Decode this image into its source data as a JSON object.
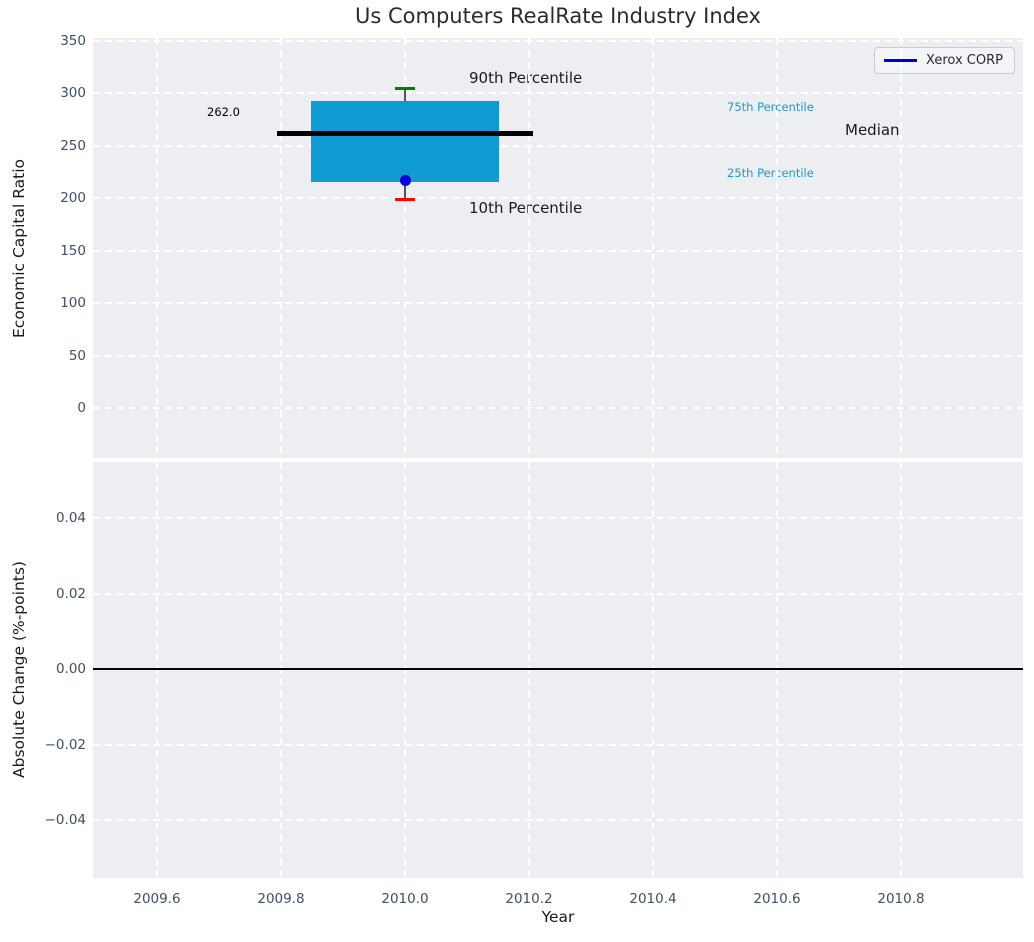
{
  "title": "Us Computers RealRate Industry Index",
  "legend": {
    "label": "Xerox CORP",
    "line_color": "#0000cd"
  },
  "colors": {
    "box_fill": "#0f9ad2",
    "median_line": "#000000",
    "whisker": "#555555",
    "p90_cap": "#008000",
    "p10_cap": "#ff0000",
    "company_point": "#0000ee",
    "percentile_label": "#1f99cc",
    "plot_background": "#eceef1",
    "gridline": "#ffffff",
    "tick_label": "#3e5063",
    "zero_line": "#000000"
  },
  "axes": {
    "top": {
      "ylabel": "Economic Capital Ratio",
      "yticks": [
        {
          "label": "350",
          "value": 350
        },
        {
          "label": "300",
          "value": 300
        },
        {
          "label": "250",
          "value": 250
        },
        {
          "label": "200",
          "value": 200
        },
        {
          "label": "150",
          "value": 150
        },
        {
          "label": "100",
          "value": 100
        },
        {
          "label": "50",
          "value": 50
        },
        {
          "label": "0",
          "value": 0
        }
      ]
    },
    "bottom": {
      "ylabel": "Absolute Change (%-points)",
      "yticks": [
        {
          "label": "0.04",
          "value": 0.04
        },
        {
          "label": "0.02",
          "value": 0.02
        },
        {
          "label": "0.00",
          "value": 0
        },
        {
          "label": "−0.02",
          "value": -0.02
        },
        {
          "label": "−0.04",
          "value": -0.04
        }
      ]
    },
    "x": {
      "label": "Year",
      "ticks": [
        {
          "label": "2009.6",
          "value": 2009.6
        },
        {
          "label": "2009.8",
          "value": 2009.8
        },
        {
          "label": "2010.0",
          "value": 2010.0
        },
        {
          "label": "2010.2",
          "value": 2010.2
        },
        {
          "label": "2010.4",
          "value": 2010.4
        },
        {
          "label": "2010.6",
          "value": 2010.6
        },
        {
          "label": "2010.8",
          "value": 2010.8
        }
      ]
    }
  },
  "annotations": {
    "p90": "90th Percentile",
    "p10": "10th Percentile",
    "p75": "75th Percentile",
    "p25": "25th Percentile",
    "median": "Median",
    "median_value": "262.0"
  },
  "chart_data": [
    {
      "type": "boxplot",
      "title": "Us Computers RealRate Industry Index",
      "xlabel": "Year",
      "ylabel": "Economic Capital Ratio",
      "x": [
        2010.0
      ],
      "box": {
        "p10": 199,
        "p25": 216,
        "median": 262.0,
        "p75": 293,
        "p90": 305
      },
      "points": [
        {
          "name": "Xerox CORP",
          "x": 2010.0,
          "y": 217
        }
      ],
      "median_label": "262.0",
      "xlim": [
        2009.5,
        2011.0
      ],
      "ylim": [
        -48,
        353
      ],
      "yticks": [
        0,
        50,
        100,
        150,
        200,
        250,
        300,
        350
      ],
      "xticks": [
        2009.6,
        2009.8,
        2010.0,
        2010.2,
        2010.4,
        2010.6,
        2010.8
      ],
      "grid": true,
      "legend_entries": [
        "Xerox CORP"
      ],
      "legend_position": "upper right"
    },
    {
      "type": "line",
      "xlabel": "Year",
      "ylabel": "Absolute Change (%-points)",
      "series": [],
      "zero_line": 0.0,
      "xlim": [
        2009.5,
        2011.0
      ],
      "ylim": [
        -0.055,
        0.055
      ],
      "yticks": [
        -0.04,
        -0.02,
        0,
        0.02,
        0.04
      ],
      "grid": true
    }
  ]
}
